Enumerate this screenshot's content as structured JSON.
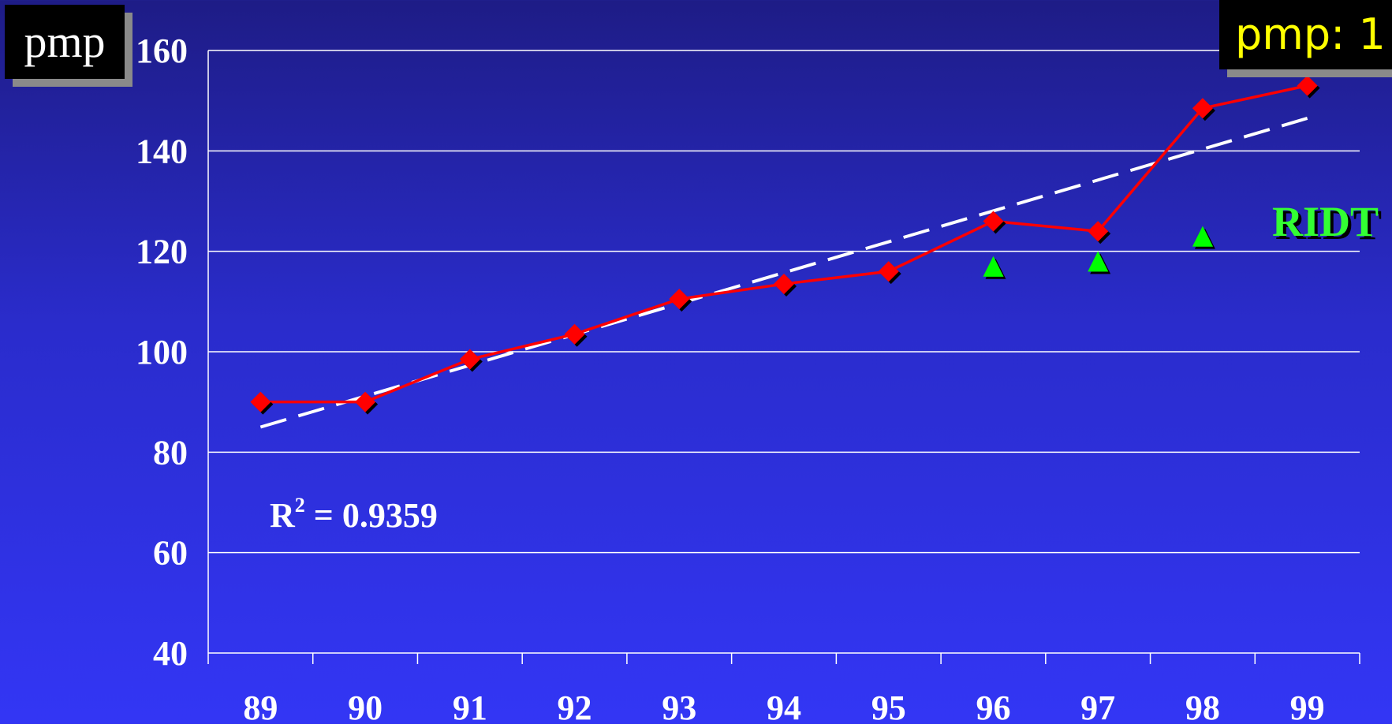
{
  "unit_label": "pmp",
  "badge_label": "pmp: 1",
  "annotation": {
    "r2_prefix": "R",
    "r2_exp": "2",
    "r2_value": " = 0.9359"
  },
  "series_label_ridt": "RIDT",
  "colors": {
    "main_line": "#ff0000",
    "trend_line": "#ffffff",
    "ridt_marker": "#00ff00",
    "grid": "#ffffff",
    "text": "#ffffff",
    "badge_text": "#ffff00"
  },
  "chart_data": {
    "type": "line",
    "categories": [
      "89",
      "90",
      "91",
      "92",
      "93",
      "94",
      "95",
      "96",
      "97",
      "98",
      "99"
    ],
    "ylim": [
      40,
      160
    ],
    "yticks": [
      40,
      60,
      80,
      100,
      120,
      140,
      160
    ],
    "grid": true,
    "series": [
      {
        "values": [
          90,
          90,
          98.5,
          103.5,
          110.5,
          113.5,
          116,
          126,
          124,
          148.5,
          153
        ]
      },
      {
        "name": "RIDT",
        "values": [
          null,
          null,
          null,
          null,
          null,
          null,
          null,
          117,
          118,
          123,
          null
        ]
      }
    ],
    "trendline": {
      "from": [
        0,
        85
      ],
      "to": [
        10,
        146.5
      ]
    },
    "r_squared": 0.9359
  }
}
